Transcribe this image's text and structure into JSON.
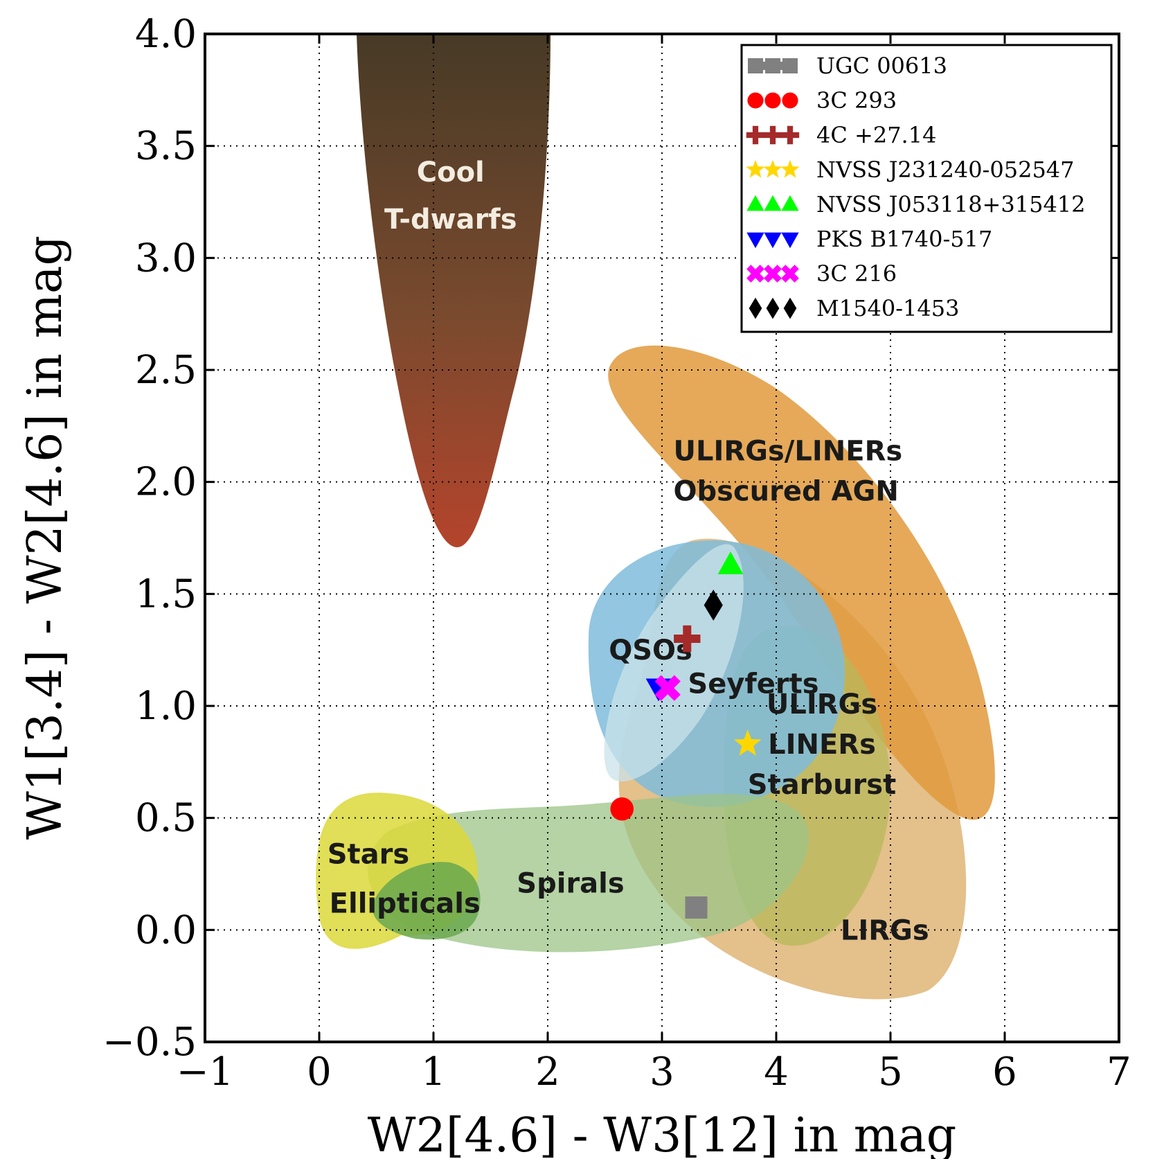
{
  "chart_data": {
    "type": "scatter",
    "title": "",
    "xlabel": "W2[4.6] - W3[12] in mag",
    "ylabel": "W1[3.4] - W2[4.6] in mag",
    "xlim": [
      -1,
      7
    ],
    "ylim": [
      -0.5,
      4.0
    ],
    "xticks": [
      -1,
      0,
      1,
      2,
      3,
      4,
      5,
      6,
      7
    ],
    "yticks": [
      -0.5,
      0.0,
      0.5,
      1.0,
      1.5,
      2.0,
      2.5,
      3.0,
      3.5,
      4.0
    ],
    "xtick_labels": [
      "−1",
      "0",
      "1",
      "2",
      "3",
      "4",
      "5",
      "6",
      "7"
    ],
    "ytick_labels": [
      "−0.5",
      "0.0",
      "0.5",
      "1.0",
      "1.5",
      "2.0",
      "2.5",
      "3.0",
      "3.5",
      "4.0"
    ],
    "grid": true,
    "legend_position": "top-right",
    "series": [
      {
        "name": "UGC 00613",
        "marker": "square",
        "color": "#808080",
        "x": 3.3,
        "y": 0.1
      },
      {
        "name": "3C 293",
        "marker": "circle",
        "color": "#ff0000",
        "x": 2.65,
        "y": 0.54
      },
      {
        "name": "4C +27.14",
        "marker": "plus",
        "color": "#a52a2a",
        "x": 3.22,
        "y": 1.3
      },
      {
        "name": "NVSS J231240-052547",
        "marker": "star",
        "color": "#ffd700",
        "x": 3.75,
        "y": 0.83
      },
      {
        "name": "NVSS J053118+315412",
        "marker": "triangle-up",
        "color": "#00ff00",
        "x": 3.6,
        "y": 1.63
      },
      {
        "name": "PKS B1740-517",
        "marker": "triangle-down",
        "color": "#0000ff",
        "x": 2.97,
        "y": 1.08
      },
      {
        "name": "3C 216",
        "marker": "x",
        "color": "#ff00ff",
        "x": 3.05,
        "y": 1.08
      },
      {
        "name": "M1540-1453",
        "marker": "diamond",
        "color": "#000000",
        "x": 3.45,
        "y": 1.45
      }
    ],
    "regions": [
      {
        "name": "ULIRGs/LINERs Obscured AGN",
        "label_lines": [
          "ULIRGs/LINERs",
          "Obscured AGN"
        ],
        "color": "#e09a3c",
        "label_x": 4.3,
        "label_y": 2.05
      },
      {
        "name": "LIRGs",
        "label_lines": [
          "LIRGs"
        ],
        "color": "#d9a55a",
        "label_x": 4.95,
        "label_y": -0.0
      },
      {
        "name": "QSOs",
        "label_lines": [
          "QSOs"
        ],
        "color": "#7fbcdc",
        "label_x": 2.9,
        "label_y": 1.25
      },
      {
        "name": "Seyferts",
        "label_lines": [
          "Seyferts"
        ],
        "color": "#b8dde6",
        "label_x": 3.8,
        "label_y": 1.1
      },
      {
        "name": "ULIRGs LINERs Starburst",
        "label_lines": [
          "ULIRGs",
          "LINERs",
          "Starburst"
        ],
        "color": "#b8b85a",
        "label_x": 4.4,
        "label_y": 0.83
      },
      {
        "name": "Spirals",
        "label_lines": [
          "Spirals"
        ],
        "color": "#9cc487",
        "label_x": 2.2,
        "label_y": 0.21
      },
      {
        "name": "Stars",
        "label_lines": [
          "Stars"
        ],
        "color": "#dcd83a",
        "label_x": 0.43,
        "label_y": 0.34
      },
      {
        "name": "Ellipticals",
        "label_lines": [
          "Ellipticals"
        ],
        "color": "#6aa84f",
        "label_x": 0.75,
        "label_y": 0.12
      },
      {
        "name": "Cool T-dwarfs",
        "label_lines": [
          "Cool",
          "T-dwarfs"
        ],
        "color": "#7a3a26",
        "label_x": 1.15,
        "label_y": 3.28
      }
    ]
  }
}
